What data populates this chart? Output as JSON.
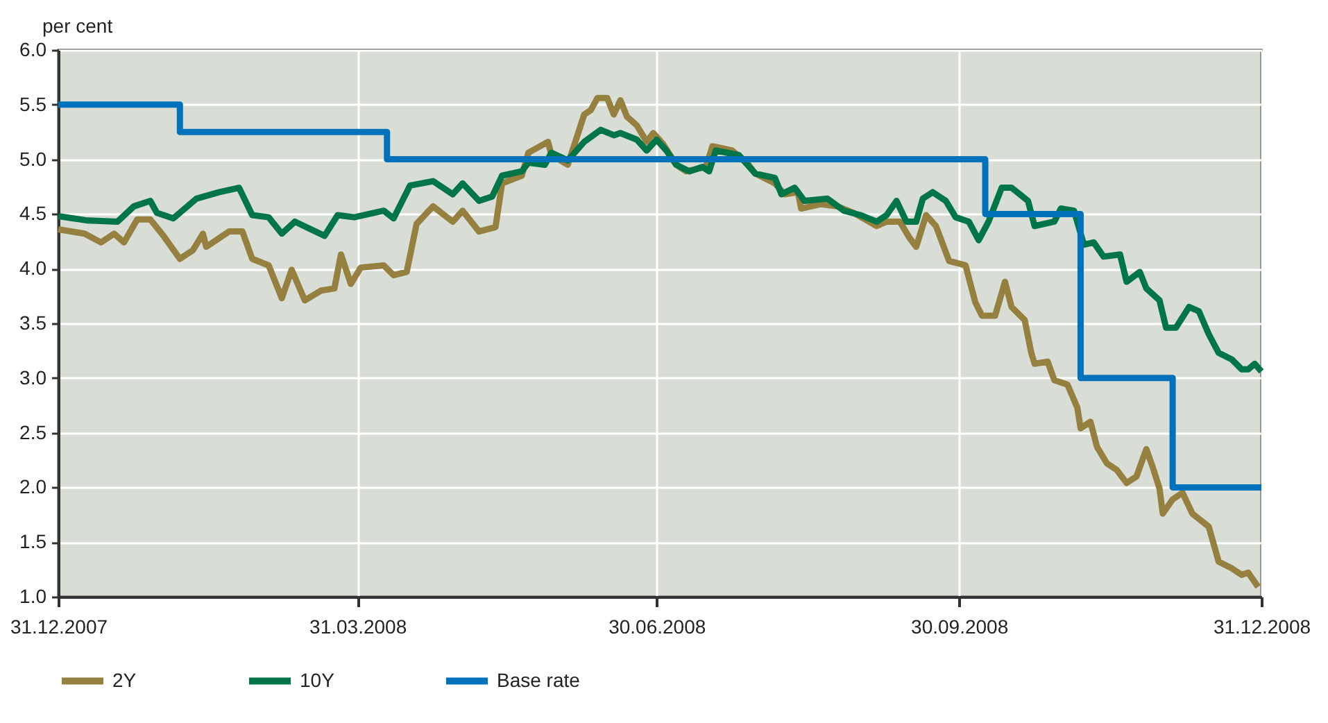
{
  "chart_data": {
    "type": "line",
    "ylabel": "per cent",
    "legend": "bottom",
    "grid": true,
    "xlim": [
      "2007-12-31",
      "2008-12-31"
    ],
    "xticks": [
      {
        "value": "2007-12-31",
        "label": "31.12.2007"
      },
      {
        "value": "2008-03-31",
        "label": "31.03.2008"
      },
      {
        "value": "2008-06-30",
        "label": "30.06.2008"
      },
      {
        "value": "2008-09-30",
        "label": "30.09.2008"
      },
      {
        "value": "2008-12-31",
        "label": "31.12.2008"
      }
    ],
    "ylim": [
      1.0,
      6.0
    ],
    "yticks": [
      {
        "value": 1,
        "label": "1.0"
      },
      1.5,
      {
        "value": 2,
        "label": "2.0"
      },
      2.5,
      {
        "value": 3,
        "label": "3.0"
      },
      3.5,
      {
        "value": 4,
        "label": "4.0"
      },
      4.5,
      {
        "value": 5,
        "label": "5.0"
      },
      5.5,
      {
        "value": 6,
        "label": "6.0"
      }
    ],
    "series": [
      {
        "name": "2Y",
        "color": "#958040",
        "x": [
          "2007-12-31",
          "2008-01-08",
          "2008-01-13",
          "2008-01-17",
          "2008-01-20",
          "2008-01-24",
          "2008-01-28",
          "2008-02-01",
          "2008-02-06",
          "2008-02-10",
          "2008-02-13",
          "2008-02-14",
          "2008-02-21",
          "2008-02-25",
          "2008-02-28",
          "2008-03-04",
          "2008-03-08",
          "2008-03-11",
          "2008-03-15",
          "2008-03-20",
          "2008-03-24",
          "2008-03-26",
          "2008-03-29",
          "2008-04-01",
          "2008-04-08",
          "2008-04-11",
          "2008-04-15",
          "2008-04-18",
          "2008-04-23",
          "2008-04-29",
          "2008-05-02",
          "2008-05-07",
          "2008-05-12",
          "2008-05-14",
          "2008-05-20",
          "2008-05-22",
          "2008-05-28",
          "2008-05-29",
          "2008-06-03",
          "2008-06-08",
          "2008-06-10",
          "2008-06-12",
          "2008-06-15",
          "2008-06-17",
          "2008-06-19",
          "2008-06-21",
          "2008-06-24",
          "2008-06-27",
          "2008-06-29",
          "2008-07-02",
          "2008-07-06",
          "2008-07-09",
          "2008-07-15",
          "2008-07-17",
          "2008-07-23",
          "2008-07-28",
          "2008-07-30",
          "2008-08-05",
          "2008-08-08",
          "2008-08-12",
          "2008-08-13",
          "2008-08-19",
          "2008-08-24",
          "2008-08-29",
          "2008-09-05",
          "2008-09-08",
          "2008-09-12",
          "2008-09-15",
          "2008-09-17",
          "2008-09-20",
          "2008-09-23",
          "2008-09-27",
          "2008-10-02",
          "2008-10-05",
          "2008-10-07",
          "2008-10-11",
          "2008-10-14",
          "2008-10-16",
          "2008-10-20",
          "2008-10-22",
          "2008-10-23",
          "2008-10-27",
          "2008-10-29",
          "2008-11-02",
          "2008-11-05",
          "2008-11-06",
          "2008-11-09",
          "2008-11-11",
          "2008-11-14",
          "2008-11-17",
          "2008-11-20",
          "2008-11-23",
          "2008-11-26",
          "2008-11-28",
          "2008-11-30",
          "2008-12-01",
          "2008-12-04",
          "2008-12-07",
          "2008-12-10",
          "2008-12-15",
          "2008-12-18",
          "2008-12-22",
          "2008-12-25",
          "2008-12-27",
          "2008-12-30"
        ],
        "values": [
          4.36,
          4.32,
          4.24,
          4.32,
          4.24,
          4.45,
          4.45,
          4.3,
          4.09,
          4.17,
          4.32,
          4.2,
          4.34,
          4.34,
          4.09,
          4.03,
          3.73,
          3.99,
          3.71,
          3.8,
          3.82,
          4.13,
          3.86,
          4.01,
          4.03,
          3.94,
          3.97,
          4.41,
          4.57,
          4.43,
          4.53,
          4.34,
          4.38,
          4.78,
          4.85,
          5.06,
          5.16,
          5.04,
          4.95,
          5.41,
          5.45,
          5.56,
          5.56,
          5.41,
          5.54,
          5.39,
          5.31,
          5.16,
          5.24,
          5.14,
          4.95,
          4.89,
          4.93,
          5.12,
          5.08,
          4.95,
          4.87,
          4.78,
          4.68,
          4.7,
          4.55,
          4.59,
          4.57,
          4.51,
          4.39,
          4.43,
          4.43,
          4.28,
          4.2,
          4.49,
          4.39,
          4.07,
          4.03,
          3.69,
          3.57,
          3.57,
          3.88,
          3.65,
          3.53,
          3.23,
          3.13,
          3.15,
          2.98,
          2.94,
          2.73,
          2.54,
          2.6,
          2.37,
          2.22,
          2.16,
          2.04,
          2.1,
          2.35,
          2.18,
          1.99,
          1.76,
          1.89,
          1.95,
          1.76,
          1.64,
          1.32,
          1.26,
          1.2,
          1.22,
          1.09
        ]
      },
      {
        "name": "10Y",
        "color": "#007547",
        "x": [
          "2007-12-31",
          "2008-01-09",
          "2008-01-18",
          "2008-01-23",
          "2008-01-28",
          "2008-01-30",
          "2008-02-04",
          "2008-02-11",
          "2008-02-18",
          "2008-02-24",
          "2008-02-28",
          "2008-03-04",
          "2008-03-08",
          "2008-03-12",
          "2008-03-21",
          "2008-03-25",
          "2008-03-30",
          "2008-04-08",
          "2008-04-11",
          "2008-04-16",
          "2008-04-23",
          "2008-04-29",
          "2008-05-02",
          "2008-05-07",
          "2008-05-11",
          "2008-05-14",
          "2008-05-20",
          "2008-05-22",
          "2008-05-27",
          "2008-05-29",
          "2008-06-03",
          "2008-06-08",
          "2008-06-13",
          "2008-06-17",
          "2008-06-19",
          "2008-06-24",
          "2008-06-27",
          "2008-06-30",
          "2008-07-03",
          "2008-07-06",
          "2008-07-10",
          "2008-07-14",
          "2008-07-16",
          "2008-07-18",
          "2008-07-25",
          "2008-07-30",
          "2008-08-05",
          "2008-08-07",
          "2008-08-11",
          "2008-08-14",
          "2008-08-21",
          "2008-08-26",
          "2008-08-31",
          "2008-09-05",
          "2008-09-08",
          "2008-09-11",
          "2008-09-14",
          "2008-09-17",
          "2008-09-19",
          "2008-09-22",
          "2008-09-26",
          "2008-09-29",
          "2008-10-03",
          "2008-10-06",
          "2008-10-09",
          "2008-10-13",
          "2008-10-16",
          "2008-10-21",
          "2008-10-23",
          "2008-10-29",
          "2008-10-31",
          "2008-11-04",
          "2008-11-07",
          "2008-11-10",
          "2008-11-13",
          "2008-11-18",
          "2008-11-20",
          "2008-11-24",
          "2008-11-26",
          "2008-11-30",
          "2008-12-02",
          "2008-12-05",
          "2008-12-09",
          "2008-12-12",
          "2008-12-15",
          "2008-12-18",
          "2008-12-22",
          "2008-12-25",
          "2008-12-27",
          "2008-12-29",
          "2008-12-31"
        ],
        "values": [
          4.48,
          4.44,
          4.43,
          4.57,
          4.62,
          4.51,
          4.46,
          4.64,
          4.7,
          4.74,
          4.49,
          4.47,
          4.32,
          4.43,
          4.3,
          4.49,
          4.47,
          4.53,
          4.46,
          4.76,
          4.8,
          4.68,
          4.78,
          4.62,
          4.66,
          4.85,
          4.89,
          4.97,
          4.95,
          5.06,
          4.99,
          5.16,
          5.27,
          5.22,
          5.24,
          5.18,
          5.08,
          5.18,
          5.08,
          4.95,
          4.89,
          4.93,
          4.89,
          5.08,
          5.04,
          4.87,
          4.83,
          4.68,
          4.74,
          4.62,
          4.64,
          4.53,
          4.49,
          4.43,
          4.49,
          4.62,
          4.43,
          4.43,
          4.64,
          4.7,
          4.62,
          4.47,
          4.43,
          4.26,
          4.43,
          4.74,
          4.74,
          4.62,
          4.39,
          4.43,
          4.55,
          4.53,
          4.22,
          4.24,
          4.11,
          4.13,
          3.88,
          3.97,
          3.82,
          3.71,
          3.46,
          3.46,
          3.65,
          3.61,
          3.4,
          3.23,
          3.17,
          3.08,
          3.08,
          3.13,
          3.06
        ]
      },
      {
        "name": "Base rate",
        "type": "step",
        "color": "#0072bc",
        "x": [
          "2007-12-31",
          "2008-02-06",
          "2008-04-09",
          "2008-10-08",
          "2008-11-06",
          "2008-12-04",
          "2008-12-31"
        ],
        "values": [
          5.5,
          5.25,
          5.0,
          4.5,
          3.0,
          2.0,
          2.0
        ]
      }
    ]
  }
}
